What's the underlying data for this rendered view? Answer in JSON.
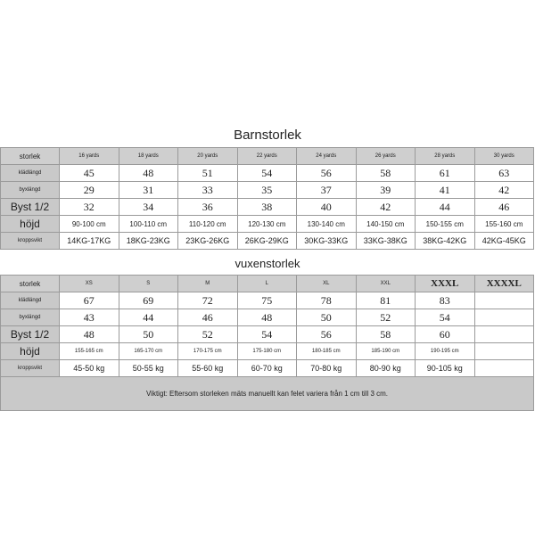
{
  "kids": {
    "title": "Barnstorlek",
    "rows": [
      {
        "label": "storlek",
        "cells": [
          "16 yards",
          "18 yards",
          "20 yards",
          "22 yards",
          "24 yards",
          "26 yards",
          "28 yards",
          "30 yards"
        ]
      },
      {
        "label": "klädlängd",
        "cells": [
          "45",
          "48",
          "51",
          "54",
          "56",
          "58",
          "61",
          "63"
        ]
      },
      {
        "label": "byxlängd",
        "cells": [
          "29",
          "31",
          "33",
          "35",
          "37",
          "39",
          "41",
          "42"
        ]
      },
      {
        "label": "Byst 1/2",
        "cells": [
          "32",
          "34",
          "36",
          "38",
          "40",
          "42",
          "44",
          "46"
        ]
      },
      {
        "label": "höjd",
        "cells": [
          "90-100 cm",
          "100-110 cm",
          "110-120 cm",
          "120-130 cm",
          "130-140 cm",
          "140-150 cm",
          "150-155 cm",
          "155-160 cm"
        ]
      },
      {
        "label": "kroppsvikt",
        "cells": [
          "14KG-17KG",
          "18KG-23KG",
          "23KG-26KG",
          "26KG-29KG",
          "30KG-33KG",
          "33KG-38KG",
          "38KG-42KG",
          "42KG-45KG"
        ]
      }
    ]
  },
  "adult": {
    "title": "vuxenstorlek",
    "rows": [
      {
        "label": "storlek",
        "cells": [
          "XS",
          "S",
          "M",
          "L",
          "XL",
          "XXL",
          "XXXL",
          "XXXXL"
        ]
      },
      {
        "label": "klädlängd",
        "cells": [
          "67",
          "69",
          "72",
          "75",
          "78",
          "81",
          "83",
          ""
        ]
      },
      {
        "label": "byxlängd",
        "cells": [
          "43",
          "44",
          "46",
          "48",
          "50",
          "52",
          "54",
          ""
        ]
      },
      {
        "label": "Byst 1/2",
        "cells": [
          "48",
          "50",
          "52",
          "54",
          "56",
          "58",
          "60",
          ""
        ]
      },
      {
        "label": "höjd",
        "cells": [
          "155-165 cm",
          "165-170 cm",
          "170-175 cm",
          "175-180 cm",
          "180-185 cm",
          "185-190 cm",
          "190-195 cm",
          ""
        ]
      },
      {
        "label": "kroppsvikt",
        "cells": [
          "45-50 kg",
          "50-55 kg",
          "55-60 kg",
          "60-70 kg",
          "70-80 kg",
          "80-90 kg",
          "90-105 kg",
          ""
        ]
      }
    ],
    "note": "Viktigt: Eftersom storleken mäts manuellt kan felet variera från 1 cm till 3 cm."
  }
}
